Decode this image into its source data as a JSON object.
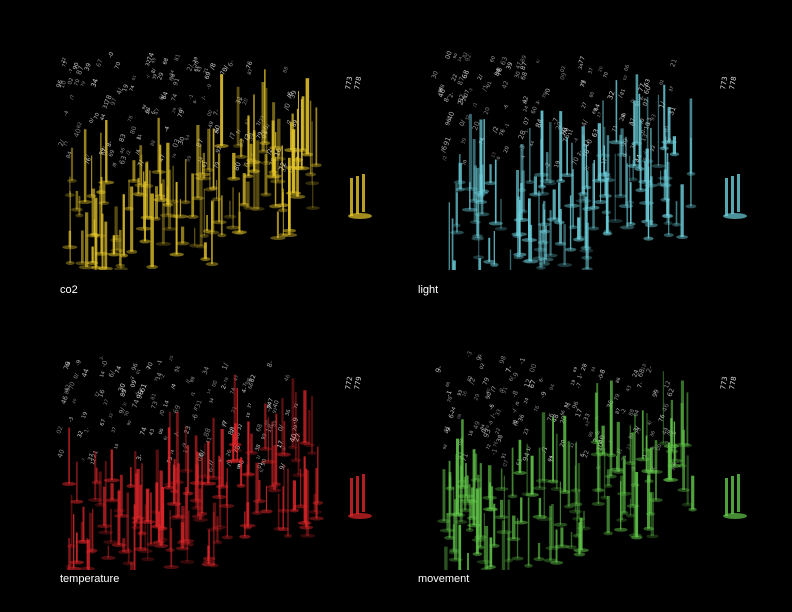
{
  "panels": [
    {
      "id": "co2",
      "label": "co2",
      "color": "#e8c82a",
      "legend_glyphs": [
        "773",
        "778"
      ]
    },
    {
      "id": "light",
      "label": "light",
      "color": "#6cd0dc",
      "legend_glyphs": [
        "773",
        "778"
      ]
    },
    {
      "id": "temperature",
      "label": "temperature",
      "color": "#e0262a",
      "legend_glyphs": [
        "772",
        "779"
      ]
    },
    {
      "id": "movement",
      "label": "movement",
      "color": "#62c84a",
      "legend_glyphs": [
        "773",
        "778"
      ]
    }
  ]
}
